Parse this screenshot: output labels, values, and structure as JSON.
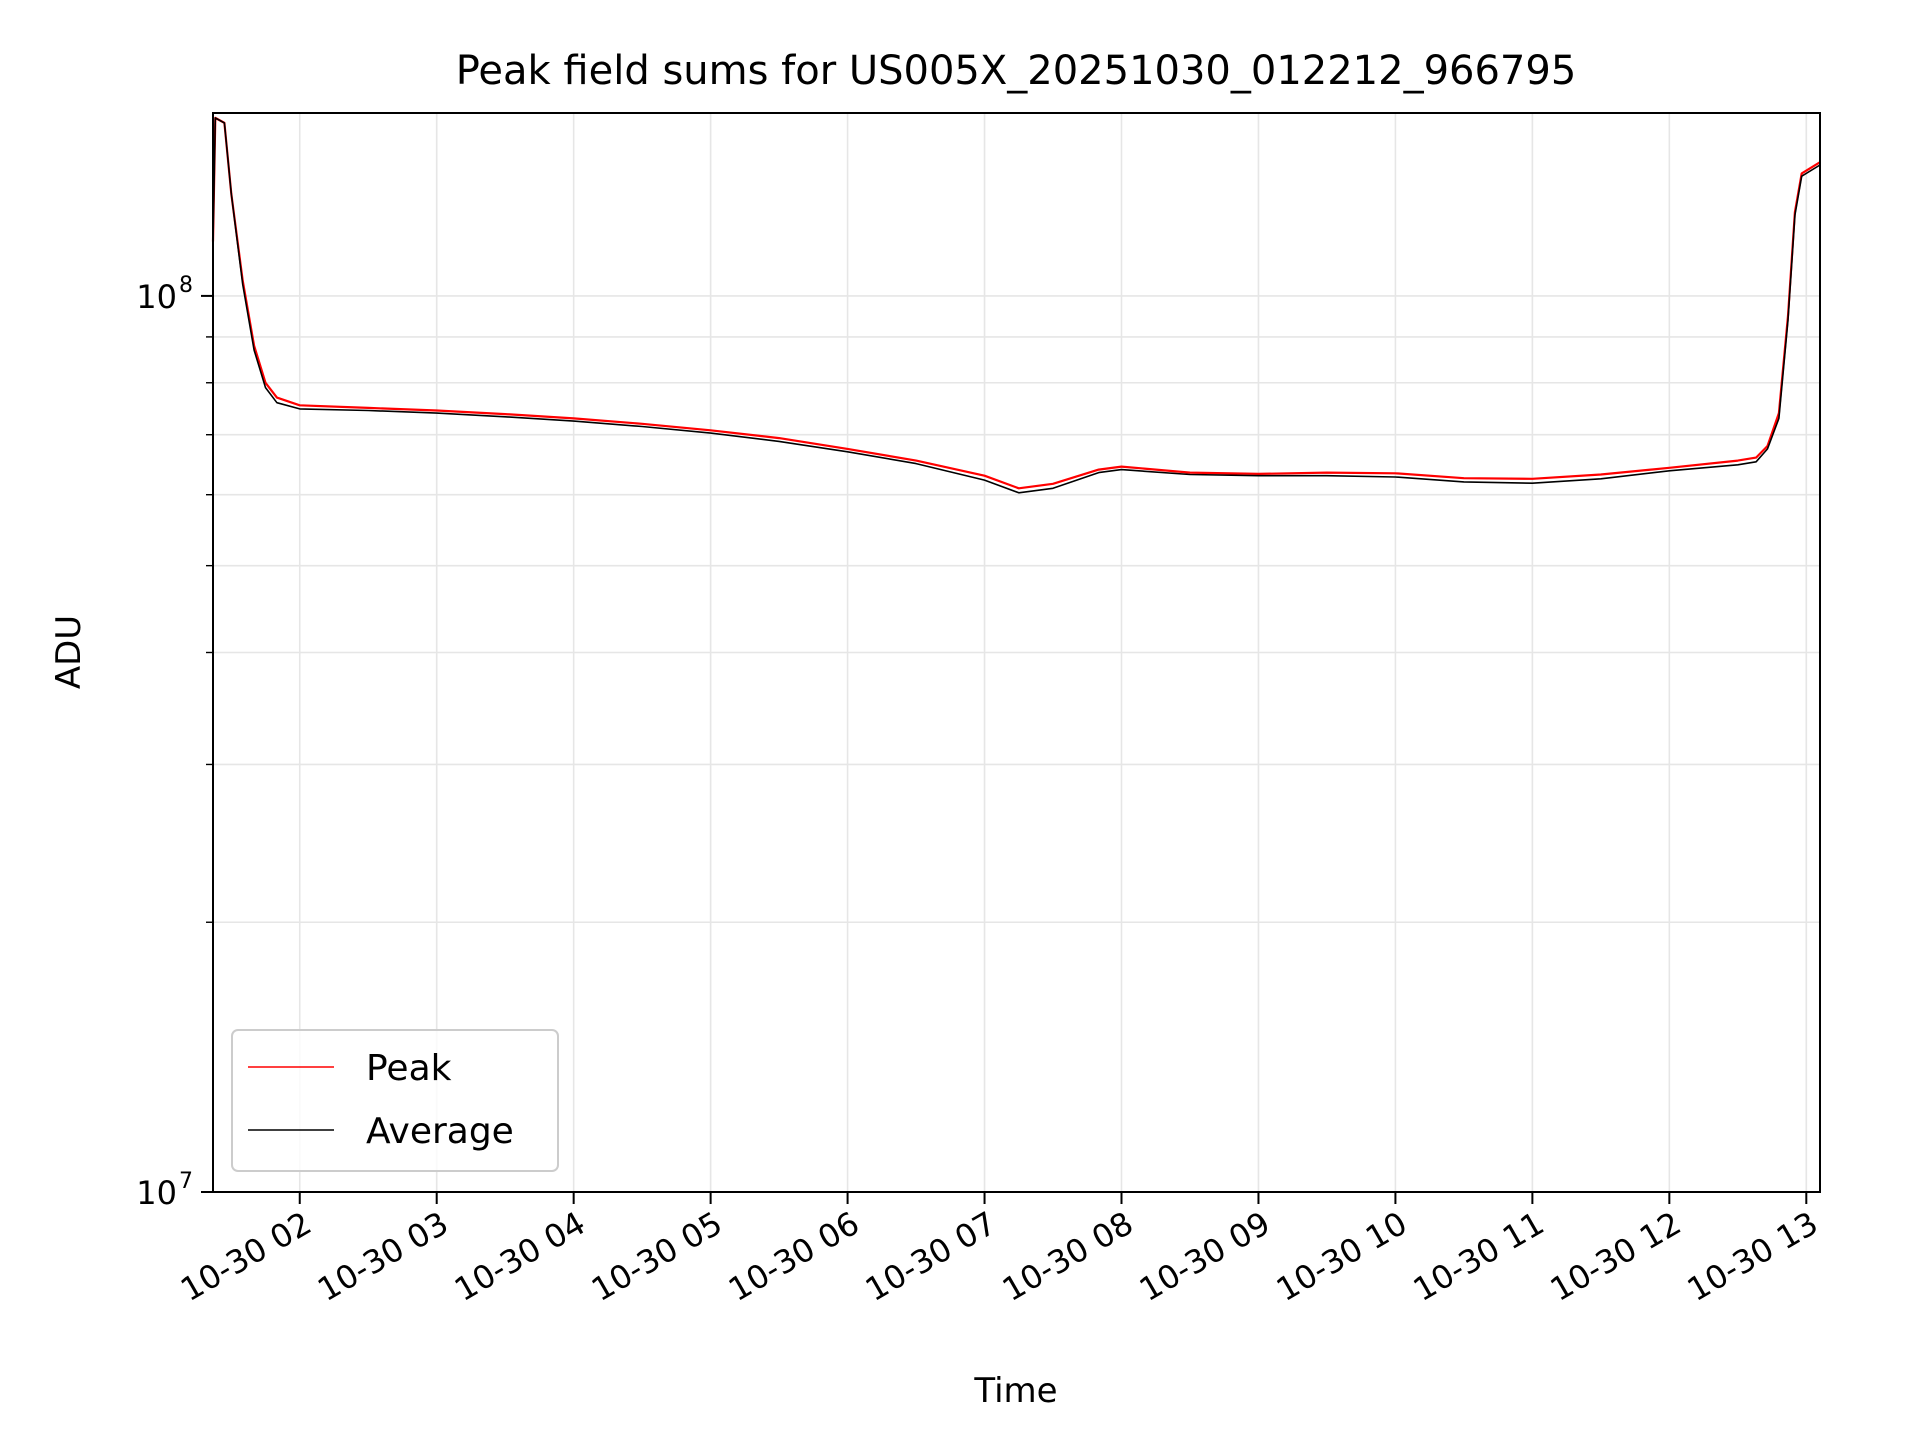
{
  "chart_data": {
    "type": "line",
    "title": "Peak field sums for US005X_20251030_012212_966795",
    "xlabel": "Time",
    "ylabel": "ADU",
    "yscale": "log",
    "xlim": [
      "10-30 01:22",
      "10-30 13:06"
    ],
    "ylim": [
      10000000,
      160000000
    ],
    "grid": true,
    "grid_color": "#e6e6e6",
    "legend_position": "lower-left",
    "x_ticks": [
      "10-30 02",
      "10-30 03",
      "10-30 04",
      "10-30 05",
      "10-30 06",
      "10-30 07",
      "10-30 08",
      "10-30 09",
      "10-30 10",
      "10-30 11",
      "10-30 12",
      "10-30 13"
    ],
    "y_ticks": [
      {
        "value": 10000000,
        "base": "10",
        "exp": "7"
      },
      {
        "value": 100000000,
        "base": "10",
        "exp": "8"
      }
    ],
    "x": [
      "10-30 01:22",
      "10-30 01:23",
      "10-30 01:27",
      "10-30 01:30",
      "10-30 01:35",
      "10-30 01:40",
      "10-30 01:45",
      "10-30 01:50",
      "10-30 02:00",
      "10-30 02:30",
      "10-30 03:00",
      "10-30 03:30",
      "10-30 04:00",
      "10-30 04:30",
      "10-30 05:00",
      "10-30 05:30",
      "10-30 06:00",
      "10-30 06:30",
      "10-30 07:00",
      "10-30 07:15",
      "10-30 07:30",
      "10-30 07:50",
      "10-30 08:00",
      "10-30 08:30",
      "10-30 09:00",
      "10-30 09:30",
      "10-30 10:00",
      "10-30 10:30",
      "10-30 11:00",
      "10-30 11:30",
      "10-30 12:00",
      "10-30 12:30",
      "10-30 12:38",
      "10-30 12:43",
      "10-30 12:48",
      "10-30 12:52",
      "10-30 12:55",
      "10-30 12:58",
      "10-30 13:06"
    ],
    "series": [
      {
        "name": "Peak",
        "color": "#ff0000",
        "values": [
          115000000,
          158000000,
          156000000,
          130000000,
          104000000,
          88000000,
          80000000,
          77000000,
          75500000,
          75000000,
          74500000,
          73800000,
          73000000,
          72000000,
          70800000,
          69400000,
          67500000,
          65500000,
          63000000,
          61000000,
          61700000,
          64000000,
          64500000,
          63500000,
          63300000,
          63500000,
          63400000,
          62600000,
          62500000,
          63200000,
          64300000,
          65500000,
          66000000,
          68000000,
          74000000,
          95000000,
          124000000,
          137000000,
          141000000
        ]
      },
      {
        "name": "Average",
        "color": "#000000",
        "values": [
          115000000,
          158000000,
          156000000,
          130000000,
          103000000,
          87000000,
          79000000,
          76000000,
          74800000,
          74500000,
          74000000,
          73300000,
          72500000,
          71500000,
          70300000,
          68800000,
          67000000,
          65000000,
          62300000,
          60300000,
          61000000,
          63500000,
          64000000,
          63200000,
          63000000,
          63000000,
          62800000,
          62000000,
          61800000,
          62500000,
          63800000,
          64800000,
          65300000,
          67500000,
          73000000,
          94000000,
          123000000,
          136000000,
          140000000
        ]
      }
    ]
  }
}
